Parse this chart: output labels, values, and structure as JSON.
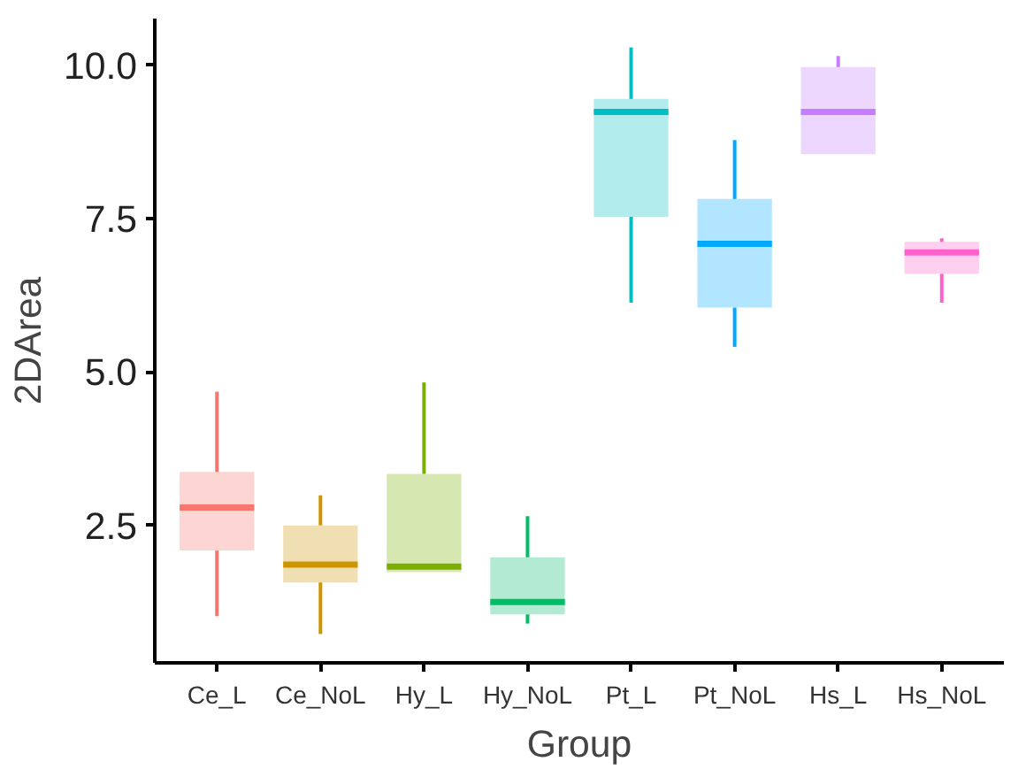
{
  "chart_data": {
    "type": "box",
    "xlabel": "Group",
    "ylabel": "2DArea",
    "categories": [
      "Ce_L",
      "Ce_NoL",
      "Hy_L",
      "Hy_NoL",
      "Pt_L",
      "Pt_NoL",
      "Hs_L",
      "Hs_NoL"
    ],
    "colors": [
      "#f8766d",
      "#cd9600",
      "#7cae00",
      "#00be67",
      "#00bfc4",
      "#00a9ff",
      "#c77cff",
      "#ff61cc"
    ],
    "boxes": [
      {
        "low": 1.02,
        "q1": 2.09,
        "median": 2.79,
        "q3": 3.37,
        "high": 4.68
      },
      {
        "low": 0.73,
        "q1": 1.57,
        "median": 1.86,
        "q3": 2.5,
        "high": 2.99
      },
      {
        "low": 1.74,
        "q1": 1.74,
        "median": 1.83,
        "q3": 3.34,
        "high": 4.83
      },
      {
        "low": 0.9,
        "q1": 1.05,
        "median": 1.25,
        "q3": 1.98,
        "high": 2.65
      },
      {
        "low": 6.13,
        "q1": 7.53,
        "median": 9.24,
        "q3": 9.45,
        "high": 10.29
      },
      {
        "low": 5.41,
        "q1": 6.05,
        "median": 7.09,
        "q3": 7.82,
        "high": 8.78
      },
      {
        "low": 8.55,
        "q1": 8.55,
        "median": 9.24,
        "q3": 9.97,
        "high": 10.15
      },
      {
        "low": 6.13,
        "q1": 6.6,
        "median": 6.95,
        "q3": 7.12,
        "high": 7.18
      }
    ],
    "ylim": [
      0.26,
      10.76
    ],
    "yticks": [
      2.5,
      {
        "value": 5,
        "label": "5.0"
      },
      7.5,
      {
        "value": 10,
        "label": "10.0"
      }
    ],
    "grid": false
  }
}
